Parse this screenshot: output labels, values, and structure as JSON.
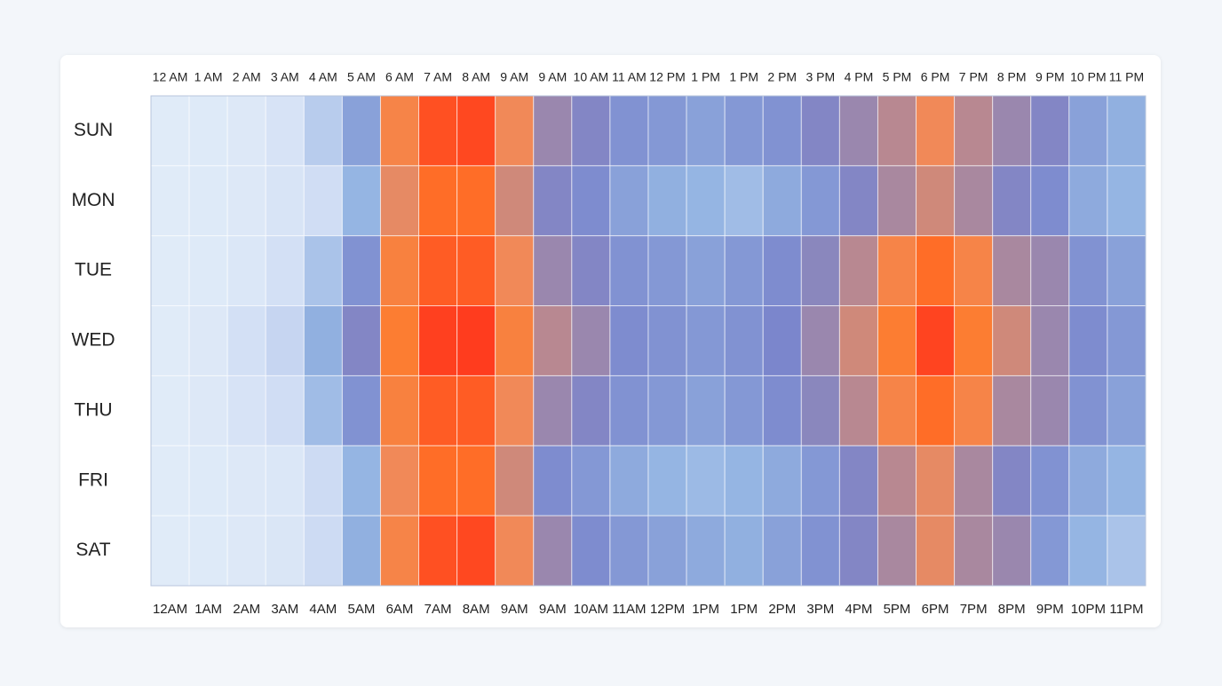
{
  "chart_data": {
    "type": "heatmap",
    "categories": [
      "12 AM",
      "1 AM",
      "2 AM",
      "3 AM",
      "4 AM",
      "5 AM",
      "6 AM",
      "7 AM",
      "8 AM",
      "9 AM",
      "9 AM",
      "10 AM",
      "11 AM",
      "12 PM",
      "1 PM",
      "1 PM",
      "2 PM",
      "3 PM",
      "4 PM",
      "5 PM",
      "6 PM",
      "7 PM",
      "8 PM",
      "9 PM",
      "10 PM",
      "11 PM"
    ],
    "categories_bottom": [
      "12AM",
      "1AM",
      "2AM",
      "3AM",
      "4AM",
      "5AM",
      "6AM",
      "7AM",
      "8AM",
      "9AM",
      "9AM",
      "10AM",
      "11AM",
      "12PM",
      "1PM",
      "1PM",
      "2PM",
      "3PM",
      "4PM",
      "5PM",
      "6PM",
      "7PM",
      "8PM",
      "9PM",
      "10PM",
      "11PM"
    ],
    "rows": [
      "SUN",
      "MON",
      "TUE",
      "WED",
      "THU",
      "FRI",
      "SAT"
    ],
    "values": [
      [
        8,
        9,
        10,
        14,
        28,
        45,
        75,
        95,
        97,
        70,
        58,
        55,
        50,
        48,
        45,
        48,
        50,
        55,
        58,
        62,
        70,
        62,
        58,
        55,
        45,
        40
      ],
      [
        8,
        9,
        10,
        13,
        18,
        38,
        68,
        88,
        88,
        65,
        55,
        52,
        45,
        40,
        38,
        35,
        42,
        48,
        55,
        60,
        65,
        60,
        55,
        52,
        42,
        38
      ],
      [
        8,
        9,
        11,
        16,
        32,
        50,
        78,
        92,
        92,
        70,
        58,
        55,
        50,
        48,
        45,
        48,
        52,
        56,
        62,
        75,
        88,
        75,
        60,
        58,
        50,
        45
      ],
      [
        8,
        10,
        16,
        24,
        40,
        55,
        82,
        99,
        100,
        78,
        62,
        58,
        52,
        50,
        48,
        50,
        54,
        58,
        65,
        82,
        98,
        82,
        65,
        58,
        52,
        48
      ],
      [
        8,
        10,
        14,
        18,
        35,
        50,
        78,
        92,
        92,
        70,
        58,
        55,
        50,
        48,
        45,
        48,
        52,
        56,
        62,
        75,
        88,
        75,
        60,
        58,
        50,
        45
      ],
      [
        8,
        9,
        10,
        11,
        20,
        38,
        70,
        88,
        88,
        65,
        52,
        48,
        42,
        38,
        36,
        38,
        42,
        48,
        55,
        62,
        68,
        60,
        55,
        50,
        42,
        38
      ],
      [
        8,
        9,
        10,
        12,
        20,
        40,
        75,
        95,
        97,
        70,
        58,
        52,
        48,
        45,
        42,
        40,
        45,
        50,
        55,
        60,
        68,
        60,
        58,
        48,
        38,
        32
      ]
    ],
    "colorscale": [
      "#e0ebf8",
      "#c8d6f2",
      "#93b4e2",
      "#7b86cc",
      "#f08a5a",
      "#ff7a2a",
      "#ff3c1e"
    ]
  }
}
